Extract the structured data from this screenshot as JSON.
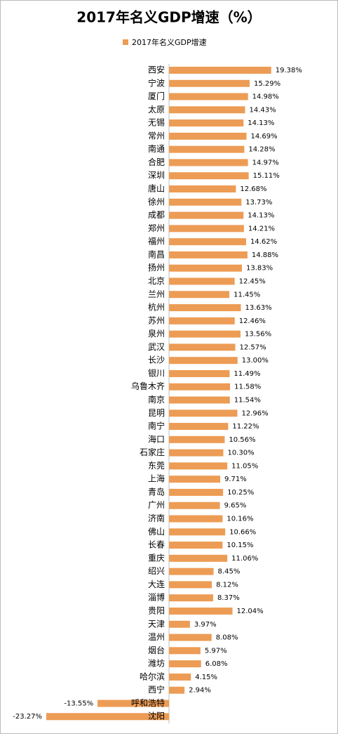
{
  "chart_data": {
    "type": "bar",
    "orientation": "horizontal",
    "title": "2017年名义GDP增速（%）",
    "categories": [
      "西安",
      "宁波",
      "厦门",
      "太原",
      "无锡",
      "常州",
      "南通",
      "合肥",
      "深圳",
      "唐山",
      "徐州",
      "成都",
      "郑州",
      "福州",
      "南昌",
      "扬州",
      "北京",
      "兰州",
      "杭州",
      "苏州",
      "泉州",
      "武汉",
      "长沙",
      "银川",
      "乌鲁木齐",
      "南京",
      "昆明",
      "南宁",
      "海口",
      "石家庄",
      "东莞",
      "上海",
      "青岛",
      "广州",
      "济南",
      "佛山",
      "长春",
      "重庆",
      "绍兴",
      "大连",
      "淄博",
      "贵阳",
      "天津",
      "温州",
      "烟台",
      "潍坊",
      "哈尔滨",
      "西宁",
      "呼和浩特",
      "沈阳"
    ],
    "series": [
      {
        "name": "2017年名义GDP增速",
        "color": "#ed9c55",
        "values": [
          19.38,
          15.29,
          14.98,
          14.43,
          14.13,
          14.69,
          14.28,
          14.97,
          15.11,
          12.68,
          13.73,
          14.13,
          14.21,
          14.62,
          14.88,
          13.83,
          12.45,
          11.45,
          13.63,
          12.46,
          13.56,
          12.57,
          13.0,
          11.49,
          11.58,
          11.54,
          12.96,
          11.22,
          10.56,
          10.3,
          11.05,
          9.71,
          10.25,
          9.65,
          10.16,
          10.66,
          10.15,
          11.06,
          8.45,
          8.12,
          8.37,
          12.04,
          3.97,
          8.08,
          5.97,
          6.08,
          4.15,
          2.94,
          -13.55,
          -23.27
        ],
        "value_labels": [
          "19.38%",
          "15.29%",
          "14.98%",
          "14.43%",
          "14.13%",
          "14.69%",
          "14.28%",
          "14.97%",
          "15.11%",
          "12.68%",
          "13.73%",
          "14.13%",
          "14.21%",
          "14.62%",
          "14.88%",
          "13.83%",
          "12.45%",
          "11.45%",
          "13.63%",
          "12.46%",
          "13.56%",
          "12.57%",
          "13.00%",
          "11.49%",
          "11.58%",
          "11.54%",
          "12.96%",
          "11.22%",
          "10.56%",
          "10.30%",
          "11.05%",
          "9.71%",
          "10.25%",
          "9.65%",
          "10.16%",
          "10.66%",
          "10.15%",
          "11.06%",
          "8.45%",
          "8.12%",
          "8.37%",
          "12.04%",
          "3.97%",
          "8.08%",
          "5.97%",
          "6.08%",
          "4.15%",
          "2.94%",
          "-13.55%",
          "-23.27%"
        ]
      }
    ],
    "legend": "top"
  }
}
